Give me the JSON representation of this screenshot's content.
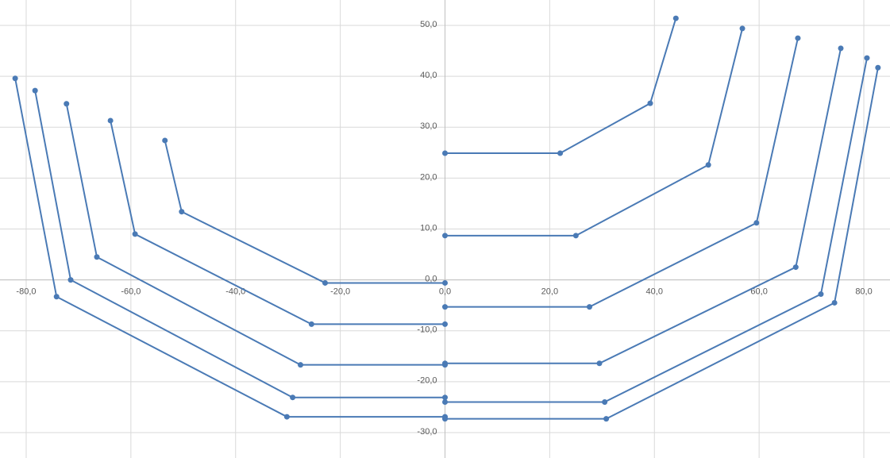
{
  "chart_data": {
    "type": "scatter",
    "xlim": [
      -85,
      85
    ],
    "ylim": [
      -35,
      55
    ],
    "xticks": [
      {
        "value": -80,
        "label": "-80,0"
      },
      {
        "value": -60,
        "label": "-60,0"
      },
      {
        "value": -40,
        "label": "-40,0"
      },
      {
        "value": -20,
        "label": "-20,0"
      },
      {
        "value": 0,
        "label": "0,0"
      },
      {
        "value": 20,
        "label": "20,0"
      },
      {
        "value": 40,
        "label": "40,0"
      },
      {
        "value": 60,
        "label": "60,0"
      },
      {
        "value": 80,
        "label": "80,0"
      }
    ],
    "yticks": [
      {
        "value": -30,
        "label": "-30,0"
      },
      {
        "value": -20,
        "label": "-20,0"
      },
      {
        "value": -10,
        "label": "-10,0"
      },
      {
        "value": 0,
        "label": "0,0"
      },
      {
        "value": 10,
        "label": "10,0"
      },
      {
        "value": 20,
        "label": "20,0"
      },
      {
        "value": 30,
        "label": "30,0"
      },
      {
        "value": 40,
        "label": "40,0"
      },
      {
        "value": 50,
        "label": "50,0"
      }
    ],
    "grid": true,
    "series": [
      {
        "color": "#4a7ab5",
        "x": [
          -53.5,
          -50.3,
          -22.9,
          0
        ],
        "y": [
          27.4,
          13.4,
          -0.6,
          -0.6
        ]
      },
      {
        "color": "#4a7ab5",
        "x": [
          -63.9,
          -59.2,
          -25.5,
          0
        ],
        "y": [
          31.3,
          9.0,
          -8.7,
          -8.7
        ]
      },
      {
        "color": "#4a7ab5",
        "x": [
          -72.3,
          -66.5,
          -27.6,
          0
        ],
        "y": [
          34.6,
          4.5,
          -16.7,
          -16.7
        ]
      },
      {
        "color": "#4a7ab5",
        "x": [
          -78.3,
          -71.5,
          -29.1,
          0
        ],
        "y": [
          37.2,
          0.0,
          -23.1,
          -23.1
        ]
      },
      {
        "color": "#4a7ab5",
        "x": [
          -82.1,
          -74.2,
          -30.2,
          0
        ],
        "y": [
          39.6,
          -3.3,
          -26.9,
          -26.9
        ]
      },
      {
        "color": "#4a7ab5",
        "x": [
          0,
          22.0,
          39.2,
          44.1
        ],
        "y": [
          24.9,
          24.9,
          34.7,
          51.4
        ]
      },
      {
        "color": "#4a7ab5",
        "x": [
          0,
          25.0,
          50.3,
          56.8
        ],
        "y": [
          8.7,
          8.7,
          22.6,
          49.4
        ]
      },
      {
        "color": "#4a7ab5",
        "x": [
          0,
          27.6,
          59.5,
          67.4
        ],
        "y": [
          -5.3,
          -5.3,
          11.2,
          47.5
        ]
      },
      {
        "color": "#4a7ab5",
        "x": [
          0,
          29.5,
          67.0,
          75.6
        ],
        "y": [
          -16.4,
          -16.4,
          2.5,
          45.5
        ]
      },
      {
        "color": "#4a7ab5",
        "x": [
          0,
          30.5,
          71.8,
          80.6
        ],
        "y": [
          -24.0,
          -24.0,
          -2.8,
          43.6
        ]
      },
      {
        "color": "#4a7ab5",
        "x": [
          0,
          30.8,
          74.4,
          82.7
        ],
        "y": [
          -27.3,
          -27.3,
          -4.5,
          41.7
        ]
      }
    ]
  }
}
